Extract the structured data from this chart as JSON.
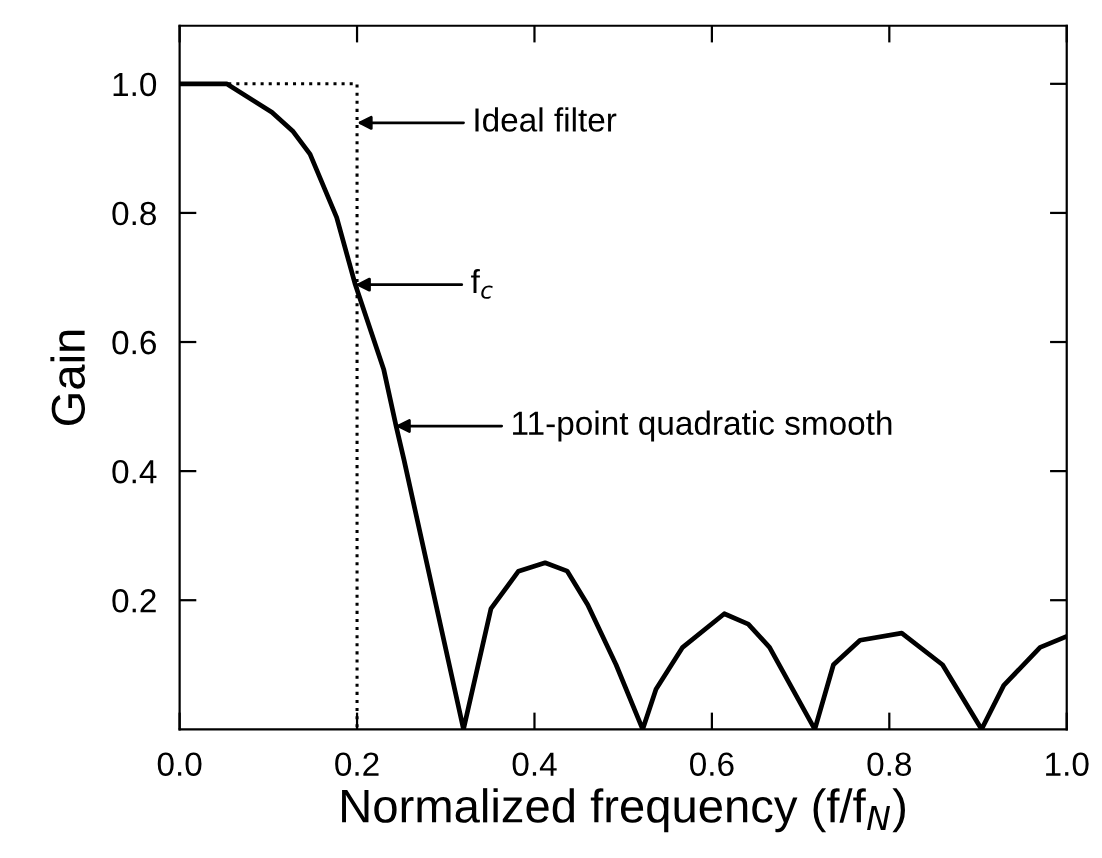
{
  "chart_data": {
    "type": "line",
    "xlabel": "Normalized frequency (f/f$_{N}$)",
    "ylabel": "Gain",
    "series": [
      {
        "color": "#000000",
        "line_style": "dotted",
        "x": [
          0,
          0.2,
          0.2
        ],
        "values": [
          1.0,
          1.0,
          0.0
        ]
      },
      {
        "color": "#000000",
        "line_style": "solid",
        "x": [
          0,
          0.053,
          0.104,
          0.128,
          0.147,
          0.177,
          0.198,
          0.23,
          0.244,
          0.253,
          0.32,
          0.351,
          0.382,
          0.412,
          0.437,
          0.46,
          0.492,
          0.522,
          0.537,
          0.567,
          0.614,
          0.641,
          0.665,
          0.716,
          0.737,
          0.767,
          0.814,
          0.86,
          0.904,
          0.929,
          0.97,
          1.0
        ],
        "values": [
          1.0,
          1.0,
          0.956,
          0.926,
          0.891,
          0.793,
          0.689,
          0.558,
          0.47,
          0.417,
          0.0,
          0.187,
          0.245,
          0.258,
          0.245,
          0.193,
          0.1,
          0.0,
          0.062,
          0.127,
          0.179,
          0.163,
          0.127,
          0.0,
          0.1,
          0.138,
          0.149,
          0.1,
          0.0,
          0.068,
          0.127,
          0.144
        ]
      }
    ],
    "annotations": [
      "Ideal filter",
      "f$_{c}$",
      "11-point quadratic smooth"
    ],
    "xlim": [
      0,
      1.0
    ],
    "xticks": [
      {
        "value": 0,
        "label": "0.0"
      },
      0.2,
      0.4,
      0.6,
      0.8,
      {
        "value": 1,
        "label": "1.0"
      }
    ],
    "ylim": [
      0,
      1.09
    ],
    "yticks": [
      0.2,
      0.4,
      0.6,
      0.8,
      {
        "value": 1,
        "label": "1.0"
      }
    ],
    "grid": false,
    "legend": false,
    "marker": "none"
  }
}
